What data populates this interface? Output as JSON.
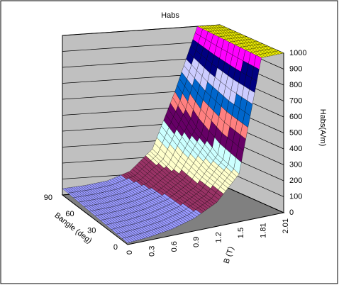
{
  "chart_data": {
    "type": "surface",
    "title": "Habs",
    "x_label": "B (T)",
    "y_label": "Bangle (deg)",
    "z_label": "Habs(A/m)",
    "categories": [
      "0",
      "0.3",
      "0.6",
      "0.9",
      "1.2",
      "1.5",
      "1.81",
      "2.01"
    ],
    "series": [
      {
        "name": "0",
        "values": [
          10,
          20,
          40,
          80,
          150,
          300,
          1000,
          1000
        ]
      },
      {
        "name": "30",
        "values": [
          20,
          30,
          50,
          90,
          170,
          350,
          1000,
          1000
        ]
      },
      {
        "name": "60",
        "values": [
          30,
          40,
          60,
          100,
          200,
          450,
          1000,
          1000
        ]
      },
      {
        "name": "90",
        "values": [
          40,
          50,
          70,
          120,
          250,
          600,
          1000,
          1000
        ]
      }
    ],
    "zlim": [
      0,
      1000
    ],
    "zticks": [
      0,
      100,
      200,
      300,
      400,
      500,
      600,
      700,
      800,
      900,
      1000
    ],
    "band_colors": [
      "#9999ff",
      "#993366",
      "#ffffcc",
      "#ccffff",
      "#660066",
      "#ff8080",
      "#0066cc",
      "#ccccff",
      "#000080",
      "#ff00ff",
      "#ffff00"
    ],
    "grid": true
  }
}
